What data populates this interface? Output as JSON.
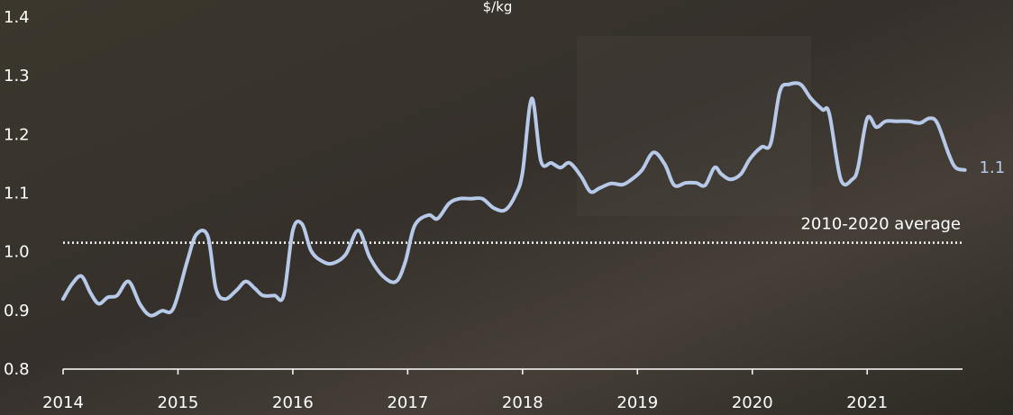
{
  "chart_data": {
    "type": "line",
    "unit_label": "$/kg",
    "x": [
      2014.0,
      2014.08,
      2014.16,
      2014.24,
      2014.31,
      2014.39,
      2014.47,
      2014.57,
      2014.67,
      2014.76,
      2014.86,
      2014.96,
      2015.08,
      2015.16,
      2015.26,
      2015.33,
      2015.41,
      2015.51,
      2015.59,
      2015.67,
      2015.74,
      2015.84,
      2015.92,
      2016.0,
      2016.08,
      2016.16,
      2016.26,
      2016.35,
      2016.46,
      2016.57,
      2016.67,
      2016.79,
      2016.9,
      2016.98,
      2017.06,
      2017.18,
      2017.26,
      2017.36,
      2017.45,
      2017.55,
      2017.65,
      2017.75,
      2017.85,
      2017.94,
      2018.0,
      2018.08,
      2018.16,
      2018.25,
      2018.33,
      2018.41,
      2018.51,
      2018.59,
      2018.67,
      2018.77,
      2018.87,
      2018.95,
      2019.04,
      2019.14,
      2019.24,
      2019.32,
      2019.42,
      2019.51,
      2019.59,
      2019.67,
      2019.73,
      2019.81,
      2019.9,
      2019.98,
      2020.08,
      2020.16,
      2020.24,
      2020.32,
      2020.42,
      2020.51,
      2020.61,
      2020.67,
      2020.77,
      2020.87,
      2020.92,
      2021.0,
      2021.08,
      2021.16,
      2021.26,
      2021.36,
      2021.46,
      2021.54,
      2021.61,
      2021.71,
      2021.77,
      2021.85
    ],
    "series": [
      {
        "color": "#b7c9e8",
        "values": [
          0.924,
          0.95,
          0.963,
          0.934,
          0.916,
          0.927,
          0.93,
          0.954,
          0.915,
          0.896,
          0.904,
          0.908,
          0.988,
          1.034,
          1.031,
          0.942,
          0.924,
          0.939,
          0.954,
          0.942,
          0.93,
          0.93,
          0.93,
          1.041,
          1.052,
          1.006,
          0.988,
          0.985,
          1.0,
          1.041,
          0.995,
          0.962,
          0.954,
          0.988,
          1.049,
          1.067,
          1.061,
          1.087,
          1.095,
          1.095,
          1.095,
          1.079,
          1.076,
          1.102,
          1.14,
          1.266,
          1.159,
          1.156,
          1.148,
          1.156,
          1.133,
          1.107,
          1.113,
          1.121,
          1.119,
          1.128,
          1.144,
          1.174,
          1.153,
          1.118,
          1.122,
          1.122,
          1.118,
          1.148,
          1.137,
          1.128,
          1.137,
          1.163,
          1.183,
          1.189,
          1.278,
          1.29,
          1.29,
          1.266,
          1.247,
          1.24,
          1.128,
          1.128,
          1.148,
          1.232,
          1.217,
          1.227,
          1.227,
          1.227,
          1.224,
          1.232,
          1.224,
          1.171,
          1.148,
          1.144
        ],
        "value_labels": [
          null,
          null,
          null,
          null,
          null,
          null,
          null,
          null,
          null,
          null,
          null,
          null,
          null,
          null,
          null,
          null,
          null,
          null,
          null,
          null,
          null,
          null,
          null,
          null,
          null,
          null,
          null,
          null,
          null,
          null,
          null,
          null,
          null,
          null,
          null,
          null,
          null,
          null,
          null,
          null,
          null,
          null,
          null,
          null,
          null,
          null,
          null,
          null,
          null,
          null,
          null,
          null,
          null,
          null,
          null,
          null,
          null,
          null,
          null,
          null,
          null,
          null,
          null,
          null,
          null,
          null,
          null,
          null,
          null,
          null,
          null,
          null,
          null,
          null,
          null,
          null,
          null,
          null,
          null,
          null,
          null,
          null,
          null,
          null,
          null,
          null,
          null,
          null,
          null,
          "1.1"
        ]
      }
    ],
    "reference": {
      "value": 1.02,
      "label": "2010-2020 average",
      "color": "#ffffff"
    },
    "xlim": [
      2014,
      2021.83
    ],
    "xticks": [
      2014,
      2015,
      2016,
      2017,
      2018,
      2019,
      2020,
      2021
    ],
    "ylim": [
      0.8,
      1.4
    ],
    "yticks": [
      0.8,
      0.9,
      {
        "value": 1,
        "label": "1.0"
      },
      1.1,
      1.2,
      1.3,
      1.4
    ]
  }
}
